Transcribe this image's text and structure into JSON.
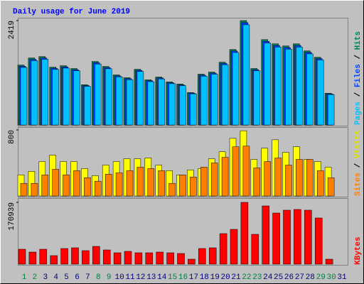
{
  "chart_data": [
    {
      "type": "bar",
      "title": "Daily usage for June 2019",
      "categories": [
        "1",
        "2",
        "3",
        "4",
        "5",
        "6",
        "7",
        "8",
        "9",
        "10",
        "11",
        "12",
        "13",
        "14",
        "15",
        "16",
        "17",
        "18",
        "19",
        "20",
        "21",
        "22",
        "23",
        "24",
        "25",
        "26",
        "27",
        "28",
        "29",
        "30",
        "31"
      ],
      "ylim": [
        0,
        2419
      ],
      "yticks": [
        2419
      ],
      "series": [
        {
          "name": "Hits",
          "color": "#00805c",
          "values": [
            1389,
            1553,
            1585,
            1340,
            1373,
            1308,
            932,
            1471,
            1357,
            1160,
            1095,
            1291,
            1046,
            1111,
            997,
            948,
            752,
            1177,
            1226,
            1455,
            1749,
            2419,
            1308,
            1978,
            1880,
            1831,
            1880,
            1716,
            1569,
            735,
            null
          ]
        },
        {
          "name": "Files",
          "color": "#0040ff",
          "values": [
            1361,
            1522,
            1553,
            1313,
            1346,
            1282,
            913,
            1442,
            1330,
            1137,
            1073,
            1265,
            1025,
            1089,
            977,
            929,
            737,
            1153,
            1201,
            1426,
            1714,
            2371,
            1282,
            1938,
            1842,
            1794,
            1842,
            1682,
            1538,
            720,
            null
          ]
        },
        {
          "name": "Pages",
          "color": "#00c0ff",
          "values": [
            1333,
            1491,
            1522,
            1286,
            1318,
            1256,
            895,
            1412,
            1303,
            1114,
            1051,
            1239,
            1004,
            1067,
            957,
            910,
            722,
            1130,
            1177,
            1397,
            1679,
            2322,
            1256,
            1899,
            1805,
            1758,
            1805,
            1647,
            1506,
            706,
            null
          ]
        }
      ]
    },
    {
      "type": "bar",
      "categories": [
        "1",
        "2",
        "3",
        "4",
        "5",
        "6",
        "7",
        "8",
        "9",
        "10",
        "11",
        "12",
        "13",
        "14",
        "15",
        "16",
        "17",
        "18",
        "19",
        "20",
        "21",
        "22",
        "23",
        "24",
        "25",
        "26",
        "27",
        "28",
        "29",
        "30",
        "31"
      ],
      "ylim": [
        0,
        800
      ],
      "yticks": [
        800
      ],
      "series": [
        {
          "name": "Visits",
          "color": "#ffff00",
          "values": [
            255,
            298,
            417,
            494,
            417,
            417,
            332,
            247,
            374,
            417,
            451,
            451,
            460,
            374,
            306,
            255,
            315,
            332,
            451,
            536,
            698,
            790,
            443,
            579,
            681,
            528,
            596,
            443,
            417,
            349,
            null
          ]
        },
        {
          "name": "Sites",
          "color": "#ff8000",
          "values": [
            153,
            153,
            255,
            323,
            255,
            306,
            221,
            179,
            264,
            281,
            306,
            349,
            332,
            306,
            153,
            255,
            230,
            349,
            400,
            468,
            596,
            604,
            340,
            417,
            460,
            374,
            443,
            443,
            306,
            221,
            null
          ]
        }
      ]
    },
    {
      "type": "bar",
      "categories": [
        "1",
        "2",
        "3",
        "4",
        "5",
        "6",
        "7",
        "8",
        "9",
        "10",
        "11",
        "12",
        "13",
        "14",
        "15",
        "16",
        "17",
        "18",
        "19",
        "20",
        "21",
        "22",
        "23",
        "24",
        "25",
        "26",
        "27",
        "28",
        "29",
        "30",
        "31"
      ],
      "category_colors": [
        "#008040",
        "#008040",
        "#000080",
        "#000080",
        "#000080",
        "#000080",
        "#000080",
        "#008040",
        "#008040",
        "#000080",
        "#000080",
        "#000080",
        "#000080",
        "#000080",
        "#008040",
        "#008040",
        "#000080",
        "#000080",
        "#000080",
        "#000080",
        "#000080",
        "#008040",
        "#008040",
        "#000080",
        "#000080",
        "#000080",
        "#000080",
        "#000080",
        "#008040",
        "#008040",
        "#000080"
      ],
      "ylim": [
        0,
        170939
      ],
      "yticks": [
        170939
      ],
      "series": [
        {
          "name": "KBytes",
          "color": "#ff0000",
          "values": [
            41262,
            33402,
            41262,
            23578,
            43227,
            45192,
            37332,
            49120,
            39296,
            31437,
            35366,
            31437,
            31437,
            33402,
            31437,
            29472,
            13754,
            43227,
            45192,
            84488,
            96276,
            170939,
            82523,
            161115,
            141467,
            149326,
            151291,
            149326,
            127713,
            13754,
            null
          ]
        }
      ]
    }
  ]
}
